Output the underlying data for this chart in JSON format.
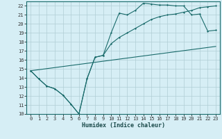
{
  "xlabel": "Humidex (Indice chaleur)",
  "bg_color": "#d6eef5",
  "grid_color": "#b0cdd4",
  "line_color": "#1a6b6b",
  "xlim": [
    -0.5,
    23.5
  ],
  "ylim": [
    10,
    22.5
  ],
  "xticks": [
    0,
    1,
    2,
    3,
    4,
    5,
    6,
    7,
    8,
    9,
    10,
    11,
    12,
    13,
    14,
    15,
    16,
    17,
    18,
    19,
    20,
    21,
    22,
    23
  ],
  "yticks": [
    10,
    11,
    12,
    13,
    14,
    15,
    16,
    17,
    18,
    19,
    20,
    21,
    22
  ],
  "curve1_x": [
    0,
    1,
    2,
    3,
    4,
    5,
    6,
    7,
    8,
    9,
    10,
    11,
    12,
    13,
    14,
    15,
    16,
    17,
    18,
    19,
    20,
    21,
    22,
    23
  ],
  "curve1_y": [
    14.8,
    13.9,
    13.1,
    12.8,
    12.1,
    11.1,
    10.0,
    13.9,
    16.3,
    16.5,
    19.0,
    21.2,
    21.0,
    21.5,
    22.3,
    22.2,
    22.1,
    22.1,
    22.0,
    22.0,
    21.0,
    21.1,
    19.2,
    19.3
  ],
  "curve2_x": [
    0,
    1,
    2,
    3,
    4,
    5,
    6,
    7,
    8,
    9,
    10,
    11,
    12,
    13,
    14,
    15,
    16,
    17,
    18,
    19,
    20,
    21,
    22,
    23
  ],
  "curve2_y": [
    14.8,
    13.9,
    13.1,
    12.8,
    12.1,
    11.1,
    10.0,
    13.9,
    16.3,
    16.5,
    17.8,
    18.5,
    19.0,
    19.5,
    20.0,
    20.5,
    20.8,
    21.0,
    21.1,
    21.3,
    21.5,
    21.8,
    21.9,
    22.0
  ],
  "curve3_x": [
    0,
    23
  ],
  "curve3_y": [
    14.8,
    17.5
  ]
}
